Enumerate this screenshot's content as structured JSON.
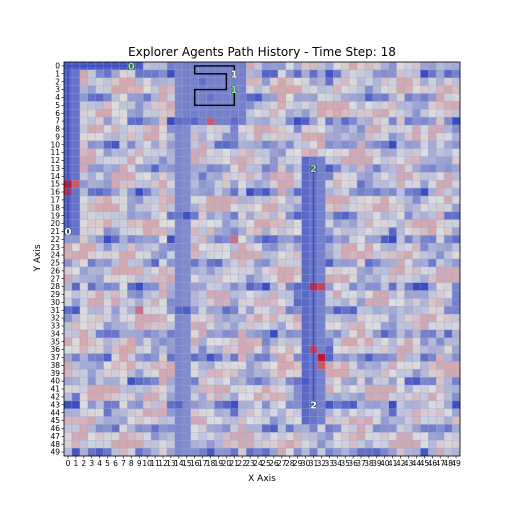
{
  "chart_data": {
    "type": "heatmap",
    "title": "Explorer Agents Path History - Time Step: 18",
    "xlabel": "X Axis",
    "ylabel": "Y Axis",
    "grid": true,
    "grid_size": [
      50,
      50
    ],
    "x_ticks": [
      "0",
      "1",
      "2",
      "3",
      "4",
      "5",
      "6",
      "7",
      "8",
      "9",
      "10",
      "11",
      "12",
      "13",
      "14",
      "15",
      "16",
      "17",
      "18",
      "19",
      "20",
      "21",
      "22",
      "23",
      "24",
      "25",
      "26",
      "27",
      "28",
      "29",
      "30",
      "31",
      "32",
      "33",
      "34",
      "35",
      "36",
      "37",
      "38",
      "39",
      "40",
      "41",
      "42",
      "43",
      "44",
      "45",
      "46",
      "47",
      "48",
      "49"
    ],
    "y_ticks": [
      "0",
      "1",
      "2",
      "3",
      "4",
      "5",
      "6",
      "7",
      "8",
      "9",
      "10",
      "11",
      "12",
      "13",
      "14",
      "15",
      "16",
      "17",
      "18",
      "19",
      "20",
      "21",
      "22",
      "23",
      "24",
      "25",
      "26",
      "27",
      "28",
      "29",
      "30",
      "31",
      "32",
      "33",
      "34",
      "35",
      "36",
      "37",
      "38",
      "39",
      "40",
      "41",
      "42",
      "43",
      "44",
      "45",
      "46",
      "47",
      "48",
      "49"
    ],
    "colormap": "coolwarm",
    "color_low": "#3b4cc0",
    "color_mid": "#dddddd",
    "color_high": "#b40426",
    "agents": [
      {
        "label": "0",
        "path_color": "#3b4cc0",
        "label_color": "#ffffff",
        "path": [
          [
            8,
            0
          ],
          [
            1,
            0
          ],
          [
            0,
            0
          ],
          [
            0,
            21
          ]
        ]
      },
      {
        "label": "1",
        "path_color": "#000000",
        "label_color": "#ffffff",
        "path": [
          [
            21,
            1
          ],
          [
            21,
            0
          ],
          [
            16,
            0
          ],
          [
            16,
            1
          ],
          [
            20,
            1
          ],
          [
            20,
            3
          ],
          [
            16,
            3
          ],
          [
            16,
            5
          ],
          [
            21,
            5
          ],
          [
            21,
            3
          ]
        ]
      },
      {
        "label": "2",
        "path_color": "#3b4cc0",
        "label_color": "#ffffff",
        "path": [
          [
            31,
            13
          ],
          [
            31,
            43
          ]
        ]
      }
    ],
    "path_label_markers": [
      {
        "label": "0",
        "x": 8,
        "y": 0,
        "color": "#90ee90"
      },
      {
        "label": "0",
        "x": 0,
        "y": 21,
        "color": "#ffffff"
      },
      {
        "label": "1",
        "x": 21,
        "y": 1,
        "color": "#ffffff"
      },
      {
        "label": "1",
        "x": 21,
        "y": 3,
        "color": "#90ee90"
      },
      {
        "label": "2",
        "x": 31,
        "y": 13,
        "color": "#90ee90"
      },
      {
        "label": "2",
        "x": 31,
        "y": 43,
        "color": "#ffffff"
      }
    ],
    "hot_spots": [
      {
        "x": 0,
        "y": 15,
        "value": 0.95
      },
      {
        "x": 0,
        "y": 16,
        "value": 0.9
      },
      {
        "x": 1,
        "y": 15,
        "value": 0.8
      },
      {
        "x": 31,
        "y": 28,
        "value": 0.9
      },
      {
        "x": 32,
        "y": 28,
        "value": 0.85
      },
      {
        "x": 32,
        "y": 37,
        "value": 0.95
      },
      {
        "x": 31,
        "y": 36,
        "value": 0.85
      },
      {
        "x": 32,
        "y": 38,
        "value": 0.8
      },
      {
        "x": 18,
        "y": 7,
        "value": 0.8
      },
      {
        "x": 21,
        "y": 22,
        "value": 0.75
      },
      {
        "x": 9,
        "y": 31,
        "value": 0.75
      }
    ]
  }
}
